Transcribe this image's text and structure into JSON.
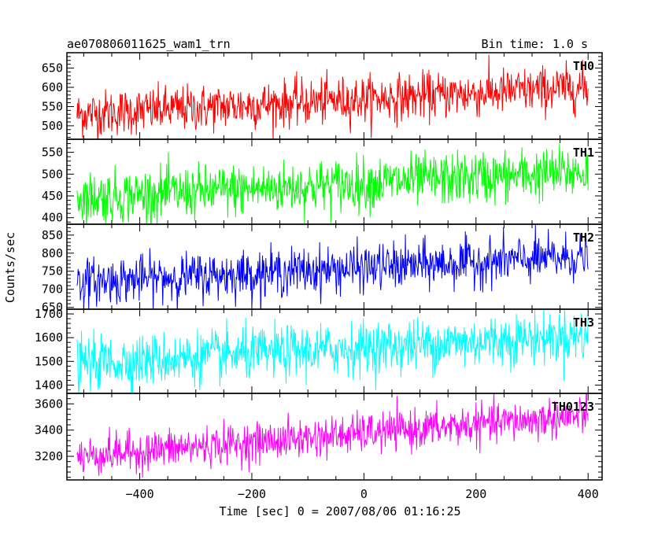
{
  "header": {
    "title": "ae070806011625_wam1_trn",
    "bin_time": "Bin time: 1.0 s"
  },
  "axes": {
    "ylabel": "Counts/sec",
    "xlabel": "Time [sec] 0 = 2007/08/06 01:16:25"
  },
  "chart_data": {
    "type": "line",
    "shared_x": {
      "range": [
        -512,
        400
      ],
      "visible_range": [
        -530,
        425
      ],
      "bin_time_s": 1.0,
      "ticks": [
        -400,
        -200,
        0,
        200,
        400
      ],
      "tick_labels": [
        "−400",
        "−200",
        "0",
        "200",
        "400"
      ]
    },
    "panels": [
      {
        "name": "TH0",
        "color": "#ff0000",
        "ylim": [
          465,
          690
        ],
        "yticks": [
          500,
          550,
          600,
          650
        ],
        "trend": [
          530,
          600
        ],
        "noise": 30
      },
      {
        "name": "TH1",
        "color": "#00ff00",
        "ylim": [
          385,
          580
        ],
        "yticks": [
          400,
          450,
          500,
          550
        ],
        "trend": [
          445,
          505
        ],
        "noise": 30
      },
      {
        "name": "TH2",
        "color": "#0000ff",
        "ylim": [
          645,
          880
        ],
        "yticks": [
          650,
          700,
          750,
          800,
          850
        ],
        "trend": [
          720,
          790
        ],
        "noise": 32
      },
      {
        "name": "TH3",
        "color": "#00ffff",
        "ylim": [
          1365,
          1720
        ],
        "yticks": [
          1400,
          1500,
          1600,
          1700
        ],
        "trend": [
          1490,
          1610
        ],
        "noise": 55
      },
      {
        "name": "TH0123",
        "color": "#ff00ff",
        "ylim": [
          3020,
          3680
        ],
        "yticks": [
          3200,
          3400,
          3600
        ],
        "trend": [
          3200,
          3510
        ],
        "noise": 75
      }
    ]
  }
}
